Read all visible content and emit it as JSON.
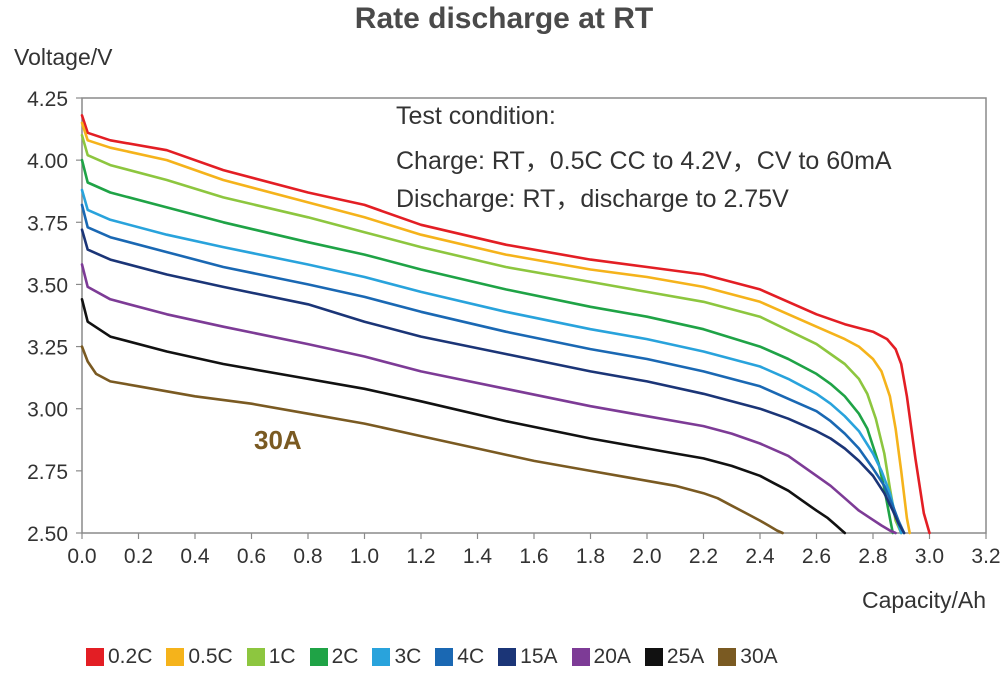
{
  "chart_data": {
    "type": "line",
    "title": "Rate discharge at RT",
    "ylabel": "Voltage/V",
    "xlabel": "Capacity/Ah",
    "xlim": [
      0.0,
      3.2
    ],
    "ylim": [
      2.5,
      4.25
    ],
    "x_ticks": [
      "0.0",
      "0.2",
      "0.4",
      "0.6",
      "0.8",
      "1.0",
      "1.2",
      "1.4",
      "1.6",
      "1.8",
      "2.0",
      "2.2",
      "2.4",
      "2.6",
      "2.8",
      "3.0",
      "3.2"
    ],
    "y_ticks": [
      "2.50",
      "2.75",
      "3.00",
      "3.25",
      "3.50",
      "3.75",
      "4.00",
      "4.25"
    ],
    "grid": false,
    "legend_position": "bottom",
    "annotations": {
      "condition_lines": [
        "Test condition:",
        "Charge: RT，0.5C CC to 4.2V，CV to 60mA",
        "Discharge: RT，discharge to 2.75V"
      ],
      "curve_label": "30A"
    },
    "series": [
      {
        "name": "0.2C",
        "color": "#e31e24",
        "x": [
          0,
          0.02,
          0.1,
          0.3,
          0.5,
          0.8,
          1.0,
          1.2,
          1.5,
          1.8,
          2.0,
          2.2,
          2.4,
          2.6,
          2.7,
          2.8,
          2.85,
          2.88,
          2.9,
          2.92,
          2.95,
          2.98,
          3.0
        ],
        "y": [
          4.18,
          4.11,
          4.08,
          4.04,
          3.96,
          3.87,
          3.82,
          3.74,
          3.66,
          3.6,
          3.57,
          3.54,
          3.48,
          3.38,
          3.34,
          3.31,
          3.28,
          3.24,
          3.18,
          3.05,
          2.8,
          2.58,
          2.5
        ]
      },
      {
        "name": "0.5C",
        "color": "#f5b31b",
        "x": [
          0,
          0.02,
          0.1,
          0.3,
          0.5,
          0.8,
          1.0,
          1.2,
          1.5,
          1.8,
          2.0,
          2.2,
          2.4,
          2.6,
          2.7,
          2.75,
          2.8,
          2.83,
          2.86,
          2.88,
          2.9,
          2.92,
          2.93
        ],
        "y": [
          4.15,
          4.08,
          4.05,
          4.0,
          3.92,
          3.83,
          3.77,
          3.7,
          3.62,
          3.56,
          3.53,
          3.49,
          3.43,
          3.33,
          3.28,
          3.25,
          3.2,
          3.15,
          3.05,
          2.92,
          2.75,
          2.56,
          2.5
        ]
      },
      {
        "name": "1C",
        "color": "#8dc63f",
        "x": [
          0,
          0.02,
          0.1,
          0.3,
          0.5,
          0.8,
          1.0,
          1.2,
          1.5,
          1.8,
          2.0,
          2.2,
          2.4,
          2.6,
          2.65,
          2.7,
          2.75,
          2.78,
          2.81,
          2.84,
          2.86,
          2.88,
          2.9
        ],
        "y": [
          4.1,
          4.02,
          3.98,
          3.92,
          3.85,
          3.77,
          3.71,
          3.65,
          3.57,
          3.51,
          3.47,
          3.43,
          3.37,
          3.26,
          3.22,
          3.18,
          3.12,
          3.06,
          2.96,
          2.82,
          2.68,
          2.55,
          2.5
        ]
      },
      {
        "name": "2C",
        "color": "#1fa346",
        "x": [
          0,
          0.02,
          0.1,
          0.3,
          0.5,
          0.8,
          1.0,
          1.2,
          1.5,
          1.8,
          2.0,
          2.2,
          2.4,
          2.5,
          2.6,
          2.65,
          2.7,
          2.75,
          2.78,
          2.82,
          2.84,
          2.86,
          2.87
        ],
        "y": [
          4.0,
          3.91,
          3.87,
          3.81,
          3.75,
          3.67,
          3.62,
          3.56,
          3.48,
          3.41,
          3.37,
          3.32,
          3.25,
          3.2,
          3.14,
          3.1,
          3.05,
          2.98,
          2.92,
          2.78,
          2.68,
          2.56,
          2.5
        ]
      },
      {
        "name": "3C",
        "color": "#29a3dc",
        "x": [
          0,
          0.02,
          0.1,
          0.3,
          0.5,
          0.8,
          1.0,
          1.2,
          1.5,
          1.8,
          2.0,
          2.2,
          2.4,
          2.5,
          2.6,
          2.65,
          2.7,
          2.75,
          2.8,
          2.83,
          2.86,
          2.88,
          2.9
        ],
        "y": [
          3.88,
          3.8,
          3.76,
          3.7,
          3.65,
          3.58,
          3.53,
          3.47,
          3.39,
          3.32,
          3.28,
          3.23,
          3.17,
          3.12,
          3.06,
          3.02,
          2.97,
          2.91,
          2.82,
          2.75,
          2.66,
          2.57,
          2.5
        ]
      },
      {
        "name": "4C",
        "color": "#1a68b3",
        "x": [
          0,
          0.02,
          0.1,
          0.3,
          0.5,
          0.8,
          1.0,
          1.2,
          1.5,
          1.8,
          2.0,
          2.2,
          2.4,
          2.5,
          2.6,
          2.65,
          2.7,
          2.75,
          2.8,
          2.84,
          2.87,
          2.89,
          2.91
        ],
        "y": [
          3.82,
          3.73,
          3.69,
          3.63,
          3.57,
          3.5,
          3.45,
          3.39,
          3.31,
          3.24,
          3.2,
          3.15,
          3.09,
          3.04,
          2.99,
          2.95,
          2.9,
          2.84,
          2.76,
          2.69,
          2.61,
          2.55,
          2.5
        ]
      },
      {
        "name": "15A",
        "color": "#1b3577",
        "x": [
          0,
          0.02,
          0.1,
          0.3,
          0.5,
          0.8,
          1.0,
          1.2,
          1.5,
          1.8,
          2.0,
          2.2,
          2.4,
          2.5,
          2.6,
          2.65,
          2.7,
          2.75,
          2.8,
          2.84,
          2.87,
          2.89,
          2.91
        ],
        "y": [
          3.72,
          3.64,
          3.6,
          3.54,
          3.49,
          3.42,
          3.35,
          3.29,
          3.22,
          3.15,
          3.11,
          3.06,
          3.0,
          2.96,
          2.91,
          2.88,
          2.84,
          2.79,
          2.73,
          2.66,
          2.59,
          2.54,
          2.5
        ]
      },
      {
        "name": "20A",
        "color": "#7d3b96",
        "x": [
          0,
          0.02,
          0.1,
          0.3,
          0.5,
          0.8,
          1.0,
          1.2,
          1.5,
          1.8,
          2.0,
          2.2,
          2.3,
          2.4,
          2.5,
          2.6,
          2.65,
          2.7,
          2.75,
          2.79,
          2.83,
          2.86,
          2.88
        ],
        "y": [
          3.58,
          3.49,
          3.44,
          3.38,
          3.33,
          3.26,
          3.21,
          3.15,
          3.08,
          3.01,
          2.97,
          2.93,
          2.9,
          2.86,
          2.81,
          2.73,
          2.69,
          2.64,
          2.59,
          2.56,
          2.53,
          2.51,
          2.5
        ]
      },
      {
        "name": "25A",
        "color": "#111111",
        "x": [
          0,
          0.02,
          0.1,
          0.3,
          0.5,
          0.8,
          1.0,
          1.2,
          1.5,
          1.8,
          2.0,
          2.1,
          2.2,
          2.3,
          2.4,
          2.45,
          2.5,
          2.55,
          2.6,
          2.64,
          2.67,
          2.69,
          2.7
        ],
        "y": [
          3.44,
          3.35,
          3.29,
          3.23,
          3.18,
          3.12,
          3.08,
          3.03,
          2.95,
          2.88,
          2.84,
          2.82,
          2.8,
          2.77,
          2.73,
          2.7,
          2.67,
          2.63,
          2.59,
          2.56,
          2.53,
          2.51,
          2.5
        ]
      },
      {
        "name": "30A",
        "color": "#7a5a22",
        "x": [
          0,
          0.02,
          0.05,
          0.1,
          0.2,
          0.4,
          0.6,
          0.8,
          1.0,
          1.2,
          1.4,
          1.6,
          1.8,
          2.0,
          2.1,
          2.2,
          2.25,
          2.3,
          2.35,
          2.4,
          2.43,
          2.46,
          2.48
        ],
        "y": [
          3.25,
          3.19,
          3.14,
          3.11,
          3.09,
          3.05,
          3.02,
          2.98,
          2.94,
          2.89,
          2.84,
          2.79,
          2.75,
          2.71,
          2.69,
          2.66,
          2.64,
          2.61,
          2.58,
          2.55,
          2.53,
          2.51,
          2.5
        ]
      }
    ]
  }
}
